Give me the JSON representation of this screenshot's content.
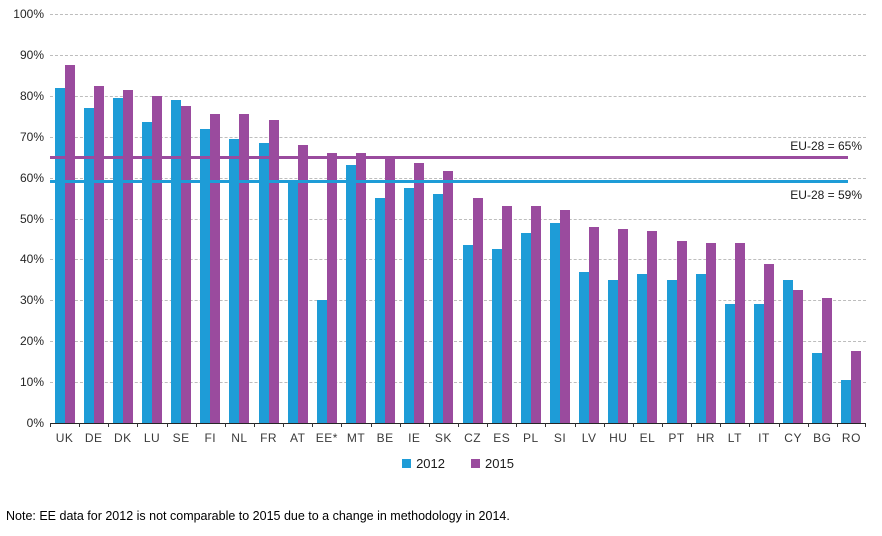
{
  "chart_data": {
    "type": "bar",
    "title": "",
    "categories": [
      "UK",
      "DE",
      "DK",
      "LU",
      "SE",
      "FI",
      "NL",
      "FR",
      "AT",
      "EE*",
      "MT",
      "BE",
      "IE",
      "SK",
      "CZ",
      "ES",
      "PL",
      "SI",
      "LV",
      "HU",
      "EL",
      "PT",
      "HR",
      "LT",
      "IT",
      "CY",
      "BG",
      "RO"
    ],
    "series": [
      {
        "name": "2012",
        "color": "#1E9CD7",
        "values": [
          82,
          77,
          79.5,
          73.5,
          79,
          72,
          69.5,
          68.5,
          59.5,
          30,
          63,
          55,
          57.5,
          56,
          43.5,
          42.5,
          46.5,
          49,
          37,
          35,
          36.5,
          35,
          36.5,
          29,
          29,
          35,
          17,
          10.5
        ]
      },
      {
        "name": "2015",
        "color": "#9A4B9E",
        "values": [
          87.5,
          82.5,
          81.5,
          80,
          77.5,
          75.5,
          75.5,
          74,
          68,
          66,
          66,
          64.5,
          63.5,
          61.5,
          55,
          53,
          53,
          52,
          48,
          47.5,
          47,
          44.5,
          44,
          44,
          39,
          32.5,
          30.5,
          17.5
        ]
      }
    ],
    "ylim": [
      0,
      100
    ],
    "ytick_labels": [
      "0%",
      "10%",
      "20%",
      "30%",
      "40%",
      "50%",
      "60%",
      "70%",
      "80%",
      "90%",
      "100%"
    ],
    "grid": "horizontal-dashed",
    "legend_position": "bottom-center",
    "ref_lines": [
      {
        "label": "EU-28 = 65%",
        "value": 65,
        "color": "#9A4B9E"
      },
      {
        "label": "EU-28 = 59%",
        "value": 59,
        "color": "#1E9CD7"
      }
    ],
    "note": "Note: EE data for 2012 is not comparable to 2015 due to a change in methodology in 2014."
  }
}
